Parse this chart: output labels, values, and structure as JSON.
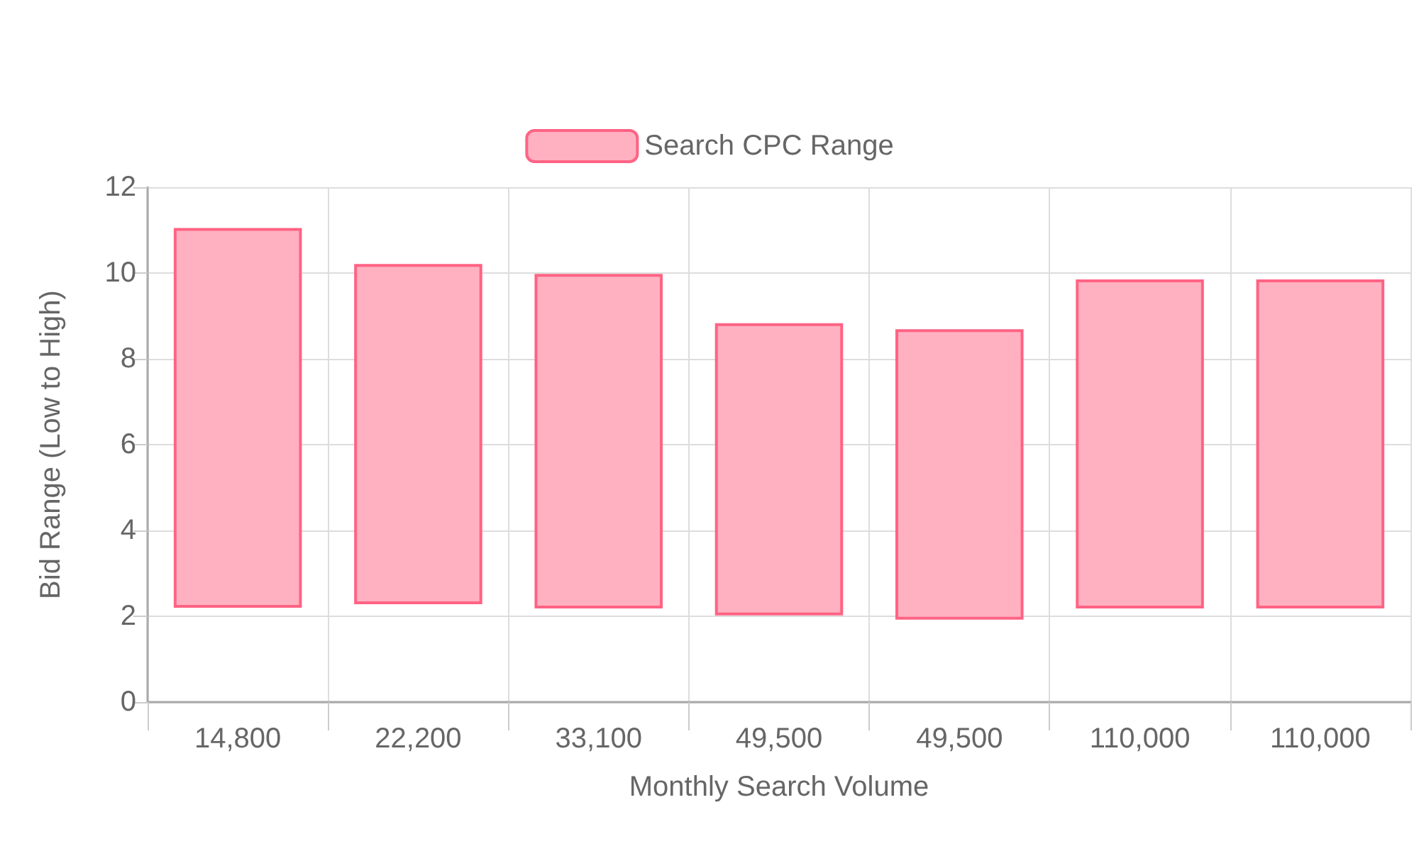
{
  "chart_data": {
    "type": "bar",
    "xlabel": "Monthly Search Volume",
    "ylabel": "Bid Range (Low to High)",
    "categories": [
      "14,800",
      "22,200",
      "33,100",
      "49,500",
      "49,500",
      "110,000",
      "110,000"
    ],
    "series": [
      {
        "name": "Search CPC Range",
        "color": "#ffb1c1",
        "values": [
          8.85,
          7.93,
          7.8,
          6.81,
          6.77,
          7.67,
          7.67
        ],
        "base": [
          2.2,
          2.28,
          2.18,
          2.02,
          1.92,
          2.18,
          2.18
        ]
      }
    ],
    "ylim": [
      0,
      12
    ],
    "yticks": [
      0,
      2,
      4,
      6,
      8,
      10,
      12
    ],
    "grid": true,
    "legend": "top"
  }
}
